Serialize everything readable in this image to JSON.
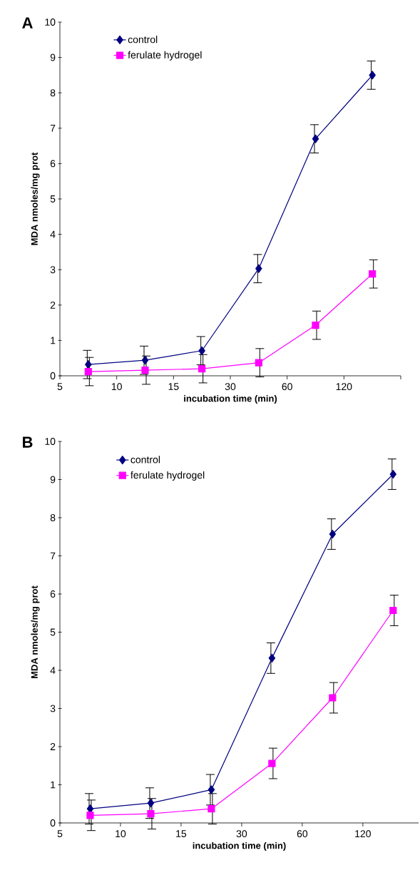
{
  "chart_data": [
    {
      "type": "line",
      "title": "A",
      "xlabel": "incubation time (min)",
      "ylabel": "MDA nmoles/mg prot",
      "categories": [
        null,
        null,
        null,
        null,
        null,
        null
      ],
      "annotations": [
        "5",
        "10",
        "15",
        "30",
        "60",
        "120"
      ],
      "ylim": [
        0,
        10
      ],
      "yticks": [
        0,
        1,
        2,
        3,
        4,
        5,
        6,
        7,
        8,
        9,
        10
      ],
      "legend": "top left",
      "grid": false,
      "series": [
        {
          "name": "control",
          "color": "#000080",
          "marker": "diamond",
          "values": [
            0.32,
            0.44,
            0.71,
            3.03,
            6.7,
            8.5
          ],
          "errors": [
            0.4,
            0.4,
            0.4,
            0.4,
            0.4,
            0.4
          ]
        },
        {
          "name": "ferulate hydrogel",
          "color": "#ff00ff",
          "marker": "square",
          "values": [
            0.12,
            0.16,
            0.2,
            0.37,
            1.43,
            2.88
          ],
          "errors": [
            0.4,
            0.4,
            0.4,
            0.4,
            0.4,
            0.4
          ]
        }
      ]
    },
    {
      "type": "line",
      "title": "B",
      "xlabel": "incubation time (min)",
      "ylabel": "MDA nmoles/mg prot",
      "categories": [
        null,
        null,
        null,
        null,
        null,
        null
      ],
      "annotations": [
        "5",
        "10",
        "15",
        "30",
        "60",
        "120"
      ],
      "ylim": [
        0,
        10
      ],
      "yticks": [
        0,
        1,
        2,
        3,
        4,
        5,
        6,
        7,
        8,
        9,
        10
      ],
      "legend": "top left",
      "grid": false,
      "series": [
        {
          "name": "control",
          "color": "#000080",
          "marker": "diamond",
          "values": [
            0.37,
            0.52,
            0.87,
            4.32,
            7.57,
            9.14
          ],
          "errors": [
            0.4,
            0.4,
            0.4,
            0.4,
            0.4,
            0.4
          ]
        },
        {
          "name": "ferulate hydrogel",
          "color": "#ff00ff",
          "marker": "square",
          "values": [
            0.2,
            0.24,
            0.37,
            1.56,
            3.28,
            5.57
          ],
          "errors": [
            0.4,
            0.4,
            0.4,
            0.4,
            0.4,
            0.4
          ]
        }
      ]
    }
  ]
}
